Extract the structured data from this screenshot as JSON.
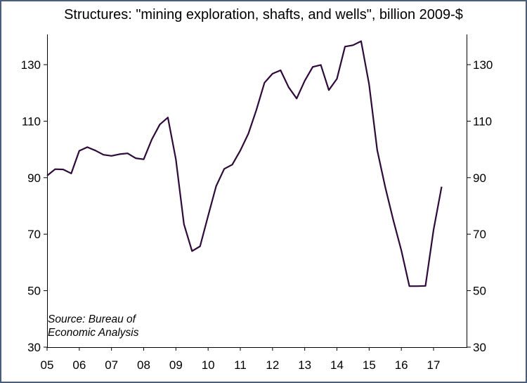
{
  "chart_data": {
    "type": "line",
    "title": "Structures: \"mining exploration, shafts, and wells\", billion 2009-$",
    "source_line1": "Source: Bureau of",
    "source_line2": "Economic Analysis",
    "xlabel": "",
    "ylabel": "",
    "ylim": [
      30,
      140
    ],
    "yticks": [
      30,
      50,
      70,
      90,
      110,
      130
    ],
    "xticks": [
      "05",
      "06",
      "07",
      "08",
      "09",
      "10",
      "11",
      "12",
      "13",
      "14",
      "15",
      "16",
      "17"
    ],
    "grid": false,
    "line_color": "#2e0a3a",
    "series": [
      {
        "x": [
          2005.0,
          2005.25,
          2005.5,
          2005.75,
          2006.0,
          2006.25,
          2006.5,
          2006.75,
          2007.0,
          2007.25,
          2007.5,
          2007.75,
          2008.0,
          2008.25,
          2008.5,
          2008.75,
          2009.0,
          2009.25,
          2009.5,
          2009.75,
          2010.0,
          2010.25,
          2010.5,
          2010.75,
          2011.0,
          2011.25,
          2011.5,
          2011.75,
          2012.0,
          2012.25,
          2012.5,
          2012.75,
          2013.0,
          2013.25,
          2013.5,
          2013.75,
          2014.0,
          2014.25,
          2014.5,
          2014.75,
          2015.0,
          2015.25,
          2015.5,
          2015.75,
          2016.0,
          2016.25,
          2016.5,
          2016.75,
          2017.0,
          2017.25
        ],
        "values": [
          90.7,
          93.0,
          92.9,
          91.5,
          99.5,
          100.8,
          99.6,
          98.1,
          97.7,
          98.3,
          98.6,
          96.9,
          96.5,
          103.5,
          108.8,
          111.3,
          96.5,
          73.5,
          64.0,
          65.7,
          76.5,
          87.0,
          93.1,
          94.6,
          99.6,
          105.6,
          114.0,
          123.6,
          126.8,
          128.0,
          122.0,
          118.0,
          124.3,
          129.2,
          129.9,
          121.0,
          125.0,
          136.4,
          136.9,
          138.3,
          123.0,
          99.8,
          86.6,
          75.0,
          64.2,
          51.6,
          51.6,
          51.7,
          71.5,
          86.8
        ]
      }
    ]
  }
}
